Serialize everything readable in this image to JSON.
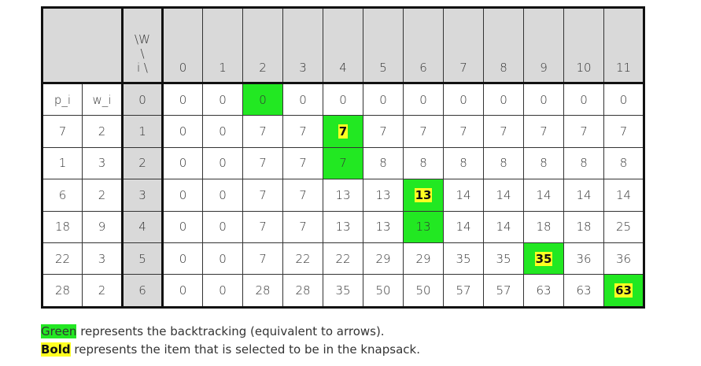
{
  "corner": {
    "line1": "\\W",
    "line2": "\\",
    "line3": "i \\"
  },
  "header_row_labels": [
    "p_i",
    "w_i"
  ],
  "capacities": [
    "0",
    "1",
    "2",
    "3",
    "4",
    "5",
    "6",
    "7",
    "8",
    "9",
    "10",
    "11"
  ],
  "rows": [
    {
      "p": "p_i",
      "w": "w_i",
      "i": "0",
      "cells": [
        "0",
        "0",
        "0",
        "0",
        "0",
        "0",
        "0",
        "0",
        "0",
        "0",
        "0",
        "0"
      ]
    },
    {
      "p": "7",
      "w": "2",
      "i": "1",
      "cells": [
        "0",
        "0",
        "7",
        "7",
        "7",
        "7",
        "7",
        "7",
        "7",
        "7",
        "7",
        "7"
      ]
    },
    {
      "p": "1",
      "w": "3",
      "i": "2",
      "cells": [
        "0",
        "0",
        "7",
        "7",
        "7",
        "8",
        "8",
        "8",
        "8",
        "8",
        "8",
        "8"
      ]
    },
    {
      "p": "6",
      "w": "2",
      "i": "3",
      "cells": [
        "0",
        "0",
        "7",
        "7",
        "13",
        "13",
        "13",
        "14",
        "14",
        "14",
        "14",
        "14"
      ]
    },
    {
      "p": "18",
      "w": "9",
      "i": "4",
      "cells": [
        "0",
        "0",
        "7",
        "7",
        "13",
        "13",
        "13",
        "14",
        "14",
        "18",
        "18",
        "25"
      ]
    },
    {
      "p": "22",
      "w": "3",
      "i": "5",
      "cells": [
        "0",
        "0",
        "7",
        "22",
        "22",
        "29",
        "29",
        "35",
        "35",
        "35",
        "36",
        "36"
      ]
    },
    {
      "p": "28",
      "w": "2",
      "i": "6",
      "cells": [
        "0",
        "0",
        "28",
        "28",
        "35",
        "50",
        "50",
        "57",
        "57",
        "63",
        "63",
        "63"
      ]
    }
  ],
  "highlights": {
    "green": [
      [
        0,
        2
      ],
      [
        1,
        4
      ],
      [
        2,
        4
      ],
      [
        3,
        6
      ],
      [
        4,
        6
      ],
      [
        5,
        9
      ],
      [
        6,
        11
      ]
    ],
    "bold": [
      [
        1,
        4
      ],
      [
        3,
        6
      ],
      [
        5,
        9
      ],
      [
        6,
        11
      ]
    ]
  },
  "colors": {
    "green": "#22e822",
    "bold_bg": "#ffff22",
    "header_bg": "#d9d9d9"
  },
  "legend": {
    "green_word": "Green",
    "green_text": " represents the backtracking (equivalent to arrows).",
    "bold_word": "Bold",
    "bold_text": " represents the item that is selected to be in the knapsack."
  }
}
